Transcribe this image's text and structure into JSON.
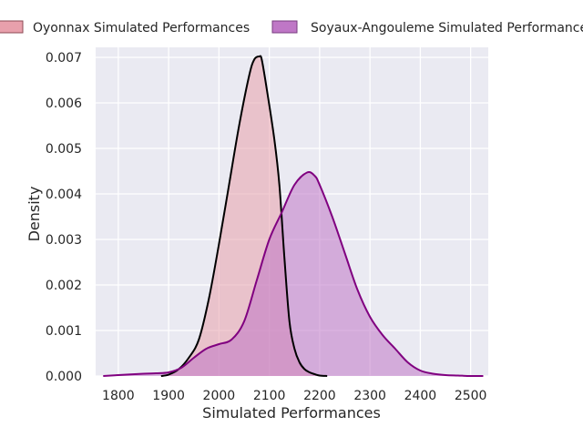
{
  "chart_data": {
    "type": "area",
    "xlabel": "Simulated Performances",
    "ylabel": "Density",
    "xlim": [
      1755,
      2535
    ],
    "ylim": [
      0,
      0.00722
    ],
    "xticks": [
      "1800",
      "1900",
      "2000",
      "2100",
      "2200",
      "2300",
      "2400",
      "2500"
    ],
    "yticks": [
      "0.000",
      "0.001",
      "0.002",
      "0.003",
      "0.004",
      "0.005",
      "0.006",
      "0.007"
    ],
    "grid": true,
    "legend_position": "top",
    "series": [
      {
        "name": "Oyonnax Simulated Performances",
        "fill_color": "#e8a0ac",
        "line_color": "#000000",
        "x": [
          1885,
          1900,
          1920,
          1940,
          1960,
          1980,
          2000,
          2020,
          2040,
          2060,
          2070,
          2080,
          2085,
          2095,
          2110,
          2120,
          2130,
          2140,
          2150,
          2160,
          2170,
          2180,
          2190,
          2200,
          2215
        ],
        "y": [
          0,
          3e-05,
          0.00015,
          0.0004,
          0.0008,
          0.0017,
          0.0029,
          0.0042,
          0.0055,
          0.0066,
          0.00695,
          0.00702,
          0.00695,
          0.0063,
          0.0052,
          0.0042,
          0.0026,
          0.0012,
          0.0006,
          0.0003,
          0.00015,
          8e-05,
          4e-05,
          1e-05,
          0
        ]
      },
      {
        "name": "Soyaux-Angouleme Simulated Performances",
        "fill_color": "#bf77c6",
        "line_color": "#800080",
        "x": [
          1770,
          1800,
          1850,
          1875,
          1900,
          1925,
          1950,
          1975,
          2000,
          2025,
          2050,
          2075,
          2100,
          2125,
          2150,
          2175,
          2190,
          2200,
          2225,
          2250,
          2275,
          2300,
          2325,
          2350,
          2375,
          2400,
          2425,
          2450,
          2475,
          2500,
          2525
        ],
        "y": [
          0,
          2e-05,
          5e-05,
          6e-05,
          8e-05,
          0.00018,
          0.0004,
          0.0006,
          0.0007,
          0.0008,
          0.0012,
          0.0021,
          0.003,
          0.0036,
          0.0042,
          0.00447,
          0.0044,
          0.0042,
          0.0035,
          0.0027,
          0.0019,
          0.0013,
          0.0009,
          0.0006,
          0.0003,
          0.00012,
          5e-05,
          2e-05,
          1e-05,
          0,
          0
        ]
      }
    ]
  }
}
